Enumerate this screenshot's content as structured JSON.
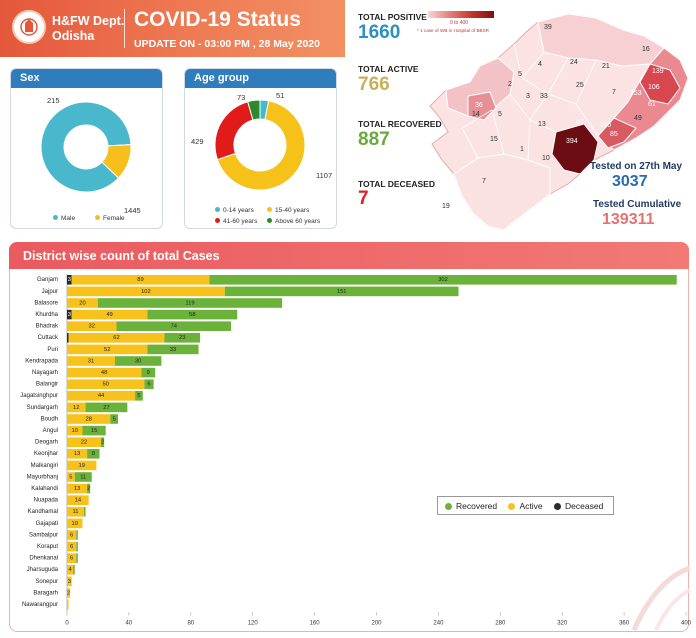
{
  "header": {
    "dept_line1": "H&FW Dept.",
    "dept_line2": "Odisha",
    "title": "COVID-19 Status",
    "update": "UPDATE ON - 03:00 PM , 28 May 2020"
  },
  "totals": {
    "positive_label": "TOTAL POSITIVE",
    "positive_value": "1660",
    "active_label": "TOTAL ACTIVE",
    "active_value": "766",
    "recovered_label": "TOTAL RECOVERED",
    "recovered_value": "887",
    "deceased_label": "TOTAL DECEASED",
    "deceased_value": "7"
  },
  "colors": {
    "positive": "#2d8fc4",
    "active": "#c8b05a",
    "recovered": "#6aaa3c",
    "deceased": "#e02020",
    "male": "#4ab8cc",
    "female": "#f6bf1e",
    "age_0_14": "#44b9cf",
    "age_15_40": "#f6c21a",
    "age_41_60": "#e11a1a",
    "age_60_plus": "#2c8a2c",
    "bar_recovered": "#6bb23b",
    "bar_active": "#f7c21b",
    "bar_deceased": "#2b2b2b"
  },
  "map": {
    "scale_label": "0 to 400",
    "note": "* 1 case of WB in Hospital of BBSR",
    "district_values": [
      "39",
      "16",
      "24",
      "21",
      "4",
      "139",
      "5",
      "2",
      "25",
      "7",
      "3",
      "36",
      "33",
      "253",
      "106",
      "14",
      "61",
      "5",
      "13",
      "57",
      "110",
      "85",
      "49",
      "15",
      "1",
      "394",
      "10",
      "7",
      "19"
    ]
  },
  "tests": {
    "day_label": "Tested on 27th May",
    "day_value": "3037",
    "cumulative_label": "Tested Cumulative",
    "cumulative_value": "139311"
  },
  "sex_chart": {
    "title": "Sex",
    "legend": [
      "Male",
      "Female"
    ],
    "values": [
      1445,
      215
    ],
    "value_labels": [
      "1445",
      "215"
    ]
  },
  "age_chart": {
    "title": "Age group",
    "legend": [
      "0-14 years",
      "15-40 years",
      "41-60 years",
      "Above 60 years"
    ],
    "values": [
      51,
      1107,
      429,
      73
    ],
    "value_labels": [
      "51",
      "1107",
      "429",
      "73"
    ]
  },
  "district_chart": {
    "title": "District wise count of total Cases",
    "legend": [
      "Recovered",
      "Active",
      "Deceased"
    ]
  },
  "chart_data": {
    "type": "bar",
    "orientation": "horizontal",
    "stacked": true,
    "title": "District wise count of total Cases",
    "categories": [
      "Ganjam",
      "Jajpur",
      "Balasore",
      "Khurdha",
      "Bhadrak",
      "Cuttack",
      "Puri",
      "Kendrapada",
      "Nayagarh",
      "Balangir",
      "Jagatsinghpur",
      "Sundargarh",
      "Boudh",
      "Angul",
      "Deogarh",
      "Keonjhar",
      "Malkangiri",
      "Mayurbhanj",
      "Kalahandi",
      "Nuapada",
      "Kandhamal",
      "Gajapati",
      "Sambalpur",
      "Koraput",
      "Dhenkanal",
      "Jharsuguda",
      "Sonepur",
      "Baragarh",
      "Nawarangpur"
    ],
    "series": [
      {
        "name": "Deceased",
        "values": [
          3,
          0,
          0,
          3,
          0,
          1,
          0,
          0,
          0,
          0,
          0,
          0,
          0,
          0,
          0,
          0,
          0,
          0,
          0,
          0,
          0,
          0,
          0,
          0,
          0,
          0,
          0,
          0,
          0
        ]
      },
      {
        "name": "Active",
        "values": [
          89,
          102,
          20,
          49,
          32,
          62,
          52,
          31,
          48,
          50,
          44,
          12,
          28,
          10,
          22,
          13,
          19,
          5,
          13,
          14,
          11,
          10,
          6,
          6,
          6,
          4,
          3,
          2,
          1
        ]
      },
      {
        "name": "Recovered",
        "values": [
          302,
          151,
          119,
          58,
          74,
          23,
          33,
          30,
          9,
          6,
          5,
          27,
          5,
          15,
          2,
          8,
          0,
          11,
          2,
          0,
          1,
          0,
          1,
          1,
          1,
          1,
          0,
          0,
          0
        ]
      }
    ],
    "xlim": [
      0,
      400
    ],
    "xticks": [
      0,
      40,
      80,
      120,
      160,
      200,
      240,
      280,
      320,
      360,
      400
    ],
    "legend_position": "right"
  }
}
